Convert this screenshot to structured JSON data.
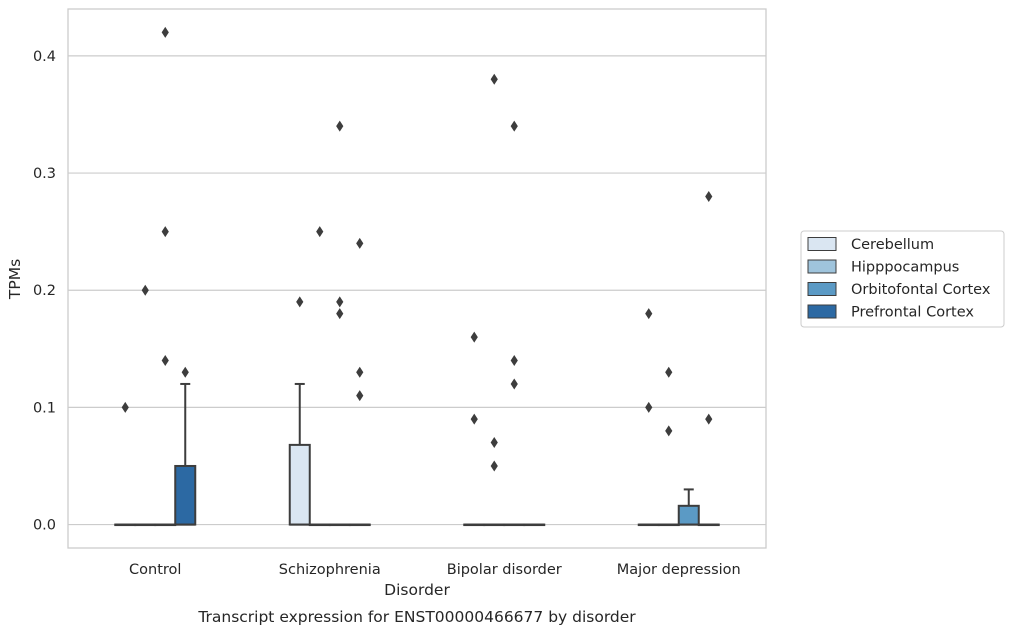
{
  "caption": "Transcript expression for ENST00000466677 by disorder",
  "chart_data": {
    "type": "boxplot",
    "xlabel": "Disorder",
    "ylabel": "TPMs",
    "ylim": [
      -0.02,
      0.44
    ],
    "yticks": [
      0.0,
      0.1,
      0.2,
      0.3,
      0.4
    ],
    "ytick_labels": [
      "0.0",
      "0.1",
      "0.2",
      "0.3",
      "0.4"
    ],
    "grid": "horizontal",
    "legend_position": "right-center",
    "categories": [
      "Control",
      "Schizophrenia",
      "Bipolar disorder",
      "Major depression"
    ],
    "series": [
      {
        "name": "Cerebellum",
        "color": "#dae6f2",
        "boxes": [
          {
            "q1": 0,
            "median": 0,
            "q3": 0,
            "whisker_low": 0,
            "whisker_high": 0,
            "outliers": [
              0.1
            ]
          },
          {
            "q1": 0,
            "median": 0,
            "q3": 0.068,
            "whisker_low": 0,
            "whisker_high": 0.12,
            "outliers": [
              0.19
            ]
          },
          {
            "q1": 0,
            "median": 0,
            "q3": 0,
            "whisker_low": 0,
            "whisker_high": 0,
            "outliers": [
              0.16,
              0.09
            ]
          },
          {
            "q1": 0,
            "median": 0,
            "q3": 0,
            "whisker_low": 0,
            "whisker_high": 0,
            "outliers": [
              0.18,
              0.1
            ]
          }
        ]
      },
      {
        "name": "Hipppocampus",
        "color": "#9fc4dc",
        "boxes": [
          {
            "q1": 0,
            "median": 0,
            "q3": 0,
            "whisker_low": 0,
            "whisker_high": 0,
            "outliers": [
              0.2
            ]
          },
          {
            "q1": 0,
            "median": 0,
            "q3": 0,
            "whisker_low": 0,
            "whisker_high": 0,
            "outliers": [
              0.25
            ]
          },
          {
            "q1": 0,
            "median": 0,
            "q3": 0,
            "whisker_low": 0,
            "whisker_high": 0,
            "outliers": [
              0.38,
              0.07,
              0.05
            ]
          },
          {
            "q1": 0,
            "median": 0,
            "q3": 0,
            "whisker_low": 0,
            "whisker_high": 0,
            "outliers": [
              0.13,
              0.08
            ]
          }
        ]
      },
      {
        "name": "Orbitofontal Cortex",
        "color": "#5b9ac5",
        "boxes": [
          {
            "q1": 0,
            "median": 0,
            "q3": 0,
            "whisker_low": 0,
            "whisker_high": 0,
            "outliers": [
              0.42,
              0.25,
              0.14
            ]
          },
          {
            "q1": 0,
            "median": 0,
            "q3": 0,
            "whisker_low": 0,
            "whisker_high": 0,
            "outliers": [
              0.34,
              0.19,
              0.18
            ]
          },
          {
            "q1": 0,
            "median": 0,
            "q3": 0,
            "whisker_low": 0,
            "whisker_high": 0,
            "outliers": [
              0.34,
              0.14,
              0.12
            ]
          },
          {
            "q1": 0,
            "median": 0,
            "q3": 0.016,
            "whisker_low": 0,
            "whisker_high": 0.03,
            "outliers": []
          }
        ]
      },
      {
        "name": "Prefrontal Cortex",
        "color": "#2c69a3",
        "boxes": [
          {
            "q1": 0,
            "median": 0,
            "q3": 0.05,
            "whisker_low": 0,
            "whisker_high": 0.12,
            "outliers": [
              0.13
            ]
          },
          {
            "q1": 0,
            "median": 0,
            "q3": 0,
            "whisker_low": 0,
            "whisker_high": 0,
            "outliers": [
              0.24,
              0.13,
              0.11
            ]
          },
          {
            "q1": 0,
            "median": 0,
            "q3": 0,
            "whisker_low": 0,
            "whisker_high": 0,
            "outliers": []
          },
          {
            "q1": 0,
            "median": 0,
            "q3": 0,
            "whisker_low": 0,
            "whisker_high": 0,
            "outliers": [
              0.28,
              0.09
            ]
          }
        ]
      }
    ]
  }
}
